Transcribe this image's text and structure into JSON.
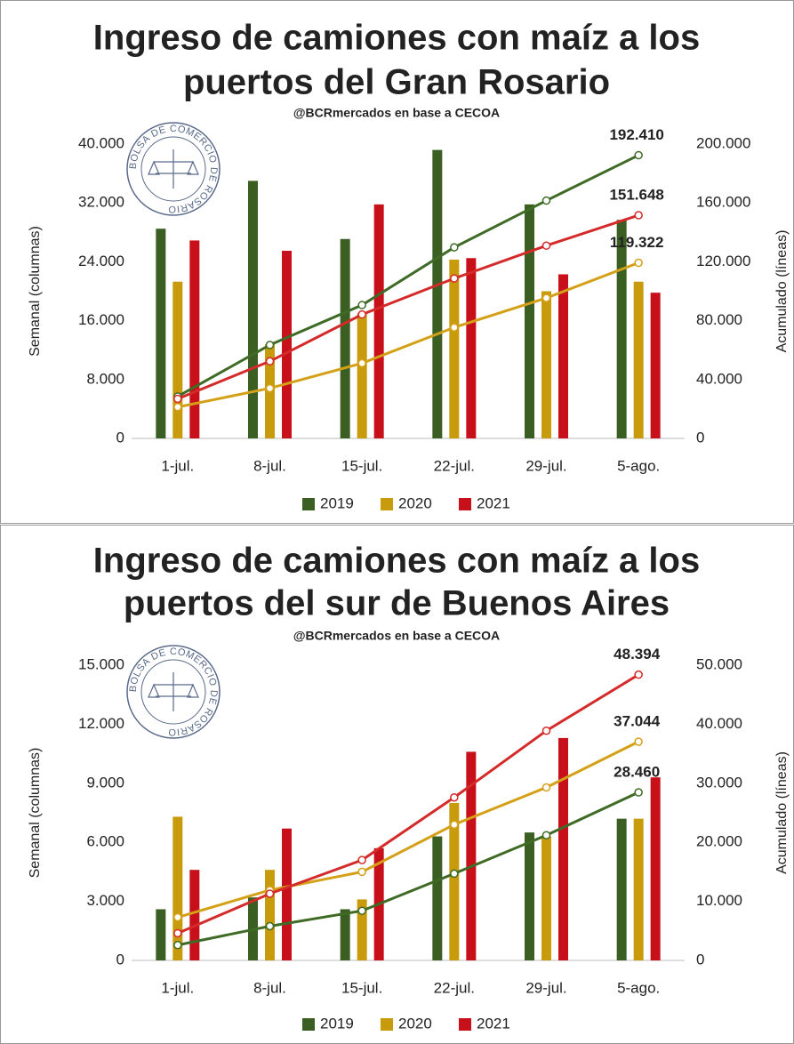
{
  "chart_data": [
    {
      "type": "bar",
      "title": [
        "Ingreso de camiones con maíz a los",
        "puertos del Gran Rosario"
      ],
      "subtitle": "@BCRmercados en base a CECOA",
      "logo_text": "BOLSA DE COMERCIO DE ROSARIO",
      "y_label": "Semanal (columnas)",
      "y2_label": "Acumulado (líneas)",
      "categories": [
        "1-jul.",
        "8-jul.",
        "15-jul.",
        "22-jul.",
        "29-jul.",
        "5-ago."
      ],
      "ylim": [
        0,
        40000
      ],
      "yticks": [
        0,
        {
          "value": 8000,
          "label": "8.000"
        },
        {
          "value": 16000,
          "label": "16.000"
        },
        {
          "value": 24000,
          "label": "24.000"
        },
        {
          "value": 32000,
          "label": "32.000"
        },
        {
          "value": 40000,
          "label": "40.000"
        }
      ],
      "y2lim": [
        0,
        200000
      ],
      "y2ticks": [
        0,
        {
          "value": 40000,
          "label": "40.000"
        },
        {
          "value": 80000,
          "label": "80.000"
        },
        {
          "value": 120000,
          "label": "120.000"
        },
        {
          "value": 160000,
          "label": "160.000"
        },
        {
          "value": 200000,
          "label": "200.000"
        }
      ],
      "grid": false,
      "legend": "bottom",
      "series": [
        {
          "name": "2019",
          "type": "bar",
          "color": "#3b5e23",
          "values": [
            28500,
            35000,
            27100,
            39200,
            31800,
            29700
          ]
        },
        {
          "name": "2020",
          "type": "bar",
          "color": "#c89b0c",
          "values": [
            21300,
            12800,
            17000,
            24300,
            20000,
            21300
          ]
        },
        {
          "name": "2021",
          "type": "bar",
          "color": "#c8101a",
          "values": [
            26900,
            25500,
            31800,
            24500,
            22300,
            19800
          ]
        },
        {
          "name": "2019",
          "type": "line",
          "axis": "y2",
          "color": "#3f6b26",
          "values": [
            28500,
            63500,
            90600,
            129800,
            161600,
            192410
          ],
          "value_labels": [
            null,
            null,
            null,
            null,
            null,
            "192.410"
          ]
        },
        {
          "name": "2020",
          "type": "line",
          "axis": "y2",
          "color": "#d4a017",
          "values": [
            21300,
            34100,
            51100,
            75400,
            95400,
            119322
          ],
          "value_labels": [
            null,
            null,
            null,
            null,
            null,
            "119.322"
          ]
        },
        {
          "name": "2021",
          "type": "line",
          "axis": "y2",
          "color": "#d42a2a",
          "values": [
            26900,
            52400,
            84200,
            108700,
            131000,
            151648
          ],
          "value_labels": [
            null,
            null,
            null,
            null,
            null,
            "151.648"
          ]
        }
      ]
    },
    {
      "type": "bar",
      "title": [
        "Ingreso de camiones con maíz a los",
        "puertos del sur de Buenos Aires"
      ],
      "subtitle": "@BCRmercados en base a CECOA",
      "logo_text": "BOLSA DE COMERCIO DE ROSARIO",
      "y_label": "Semanal (columnas)",
      "y2_label": "Acumulado (líneas)",
      "categories": [
        "1-jul.",
        "8-jul.",
        "15-jul.",
        "22-jul.",
        "29-jul.",
        "5-ago."
      ],
      "ylim": [
        0,
        15000
      ],
      "yticks": [
        0,
        {
          "value": 3000,
          "label": "3.000"
        },
        {
          "value": 6000,
          "label": "6.000"
        },
        {
          "value": 9000,
          "label": "9.000"
        },
        {
          "value": 12000,
          "label": "12.000"
        },
        {
          "value": 15000,
          "label": "15.000"
        }
      ],
      "y2lim": [
        0,
        50000
      ],
      "y2ticks": [
        0,
        {
          "value": 10000,
          "label": "10.000"
        },
        {
          "value": 20000,
          "label": "20.000"
        },
        {
          "value": 30000,
          "label": "30.000"
        },
        {
          "value": 40000,
          "label": "40.000"
        },
        {
          "value": 50000,
          "label": "50.000"
        }
      ],
      "grid": false,
      "legend": "bottom",
      "series": [
        {
          "name": "2019",
          "type": "bar",
          "color": "#3b5e23",
          "values": [
            2600,
            3200,
            2600,
            6300,
            6500,
            7200
          ]
        },
        {
          "name": "2020",
          "type": "bar",
          "color": "#c89b0c",
          "values": [
            7300,
            4600,
            3100,
            8000,
            6300,
            7200
          ]
        },
        {
          "name": "2021",
          "type": "bar",
          "color": "#c8101a",
          "values": [
            4600,
            6700,
            5700,
            10600,
            11300,
            9300
          ]
        },
        {
          "name": "2019",
          "type": "line",
          "axis": "y2",
          "color": "#3f6b26",
          "values": [
            2600,
            5800,
            8400,
            14700,
            21200,
            28460
          ],
          "value_labels": [
            null,
            null,
            null,
            null,
            null,
            "28.460"
          ]
        },
        {
          "name": "2020",
          "type": "line",
          "axis": "y2",
          "color": "#d4a017",
          "values": [
            7300,
            11900,
            15000,
            23000,
            29300,
            37044
          ],
          "value_labels": [
            null,
            null,
            null,
            null,
            null,
            "37.044"
          ]
        },
        {
          "name": "2021",
          "type": "line",
          "axis": "y2",
          "color": "#d42a2a",
          "values": [
            4600,
            11300,
            17000,
            27600,
            38900,
            48394
          ],
          "value_labels": [
            null,
            null,
            null,
            null,
            null,
            "48.394"
          ]
        }
      ]
    }
  ]
}
